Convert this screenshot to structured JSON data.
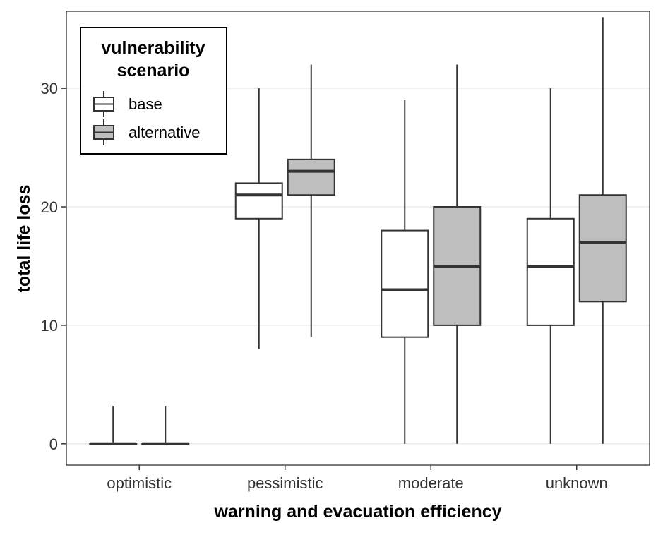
{
  "chart_data": {
    "type": "boxplot",
    "xlabel": "warning and evacuation efficiency",
    "ylabel": "total life loss",
    "ylim": [
      -1.8,
      36.5
    ],
    "yticks": [
      0,
      10,
      20,
      30
    ],
    "ytick_labels": [
      "0",
      "10",
      "20",
      "30"
    ],
    "grid": true,
    "categories": [
      "optimistic",
      "pessimistic",
      "moderate",
      "unknown"
    ],
    "legend": {
      "title_line1": "vulnerability",
      "title_line2": "scenario",
      "position": "top-left"
    },
    "series": [
      {
        "name": "base",
        "fill": "#ffffff",
        "boxes": [
          {
            "min": 0,
            "q1": 0,
            "median": 0,
            "q3": 0,
            "max": 3.2
          },
          {
            "min": 8,
            "q1": 19,
            "median": 21,
            "q3": 22,
            "max": 30
          },
          {
            "min": 0,
            "q1": 9,
            "median": 13,
            "q3": 18,
            "max": 29
          },
          {
            "min": 0,
            "q1": 10,
            "median": 15,
            "q3": 19,
            "max": 30
          }
        ]
      },
      {
        "name": "alternative",
        "fill": "#bebebe",
        "boxes": [
          {
            "min": 0,
            "q1": 0,
            "median": 0,
            "q3": 0,
            "max": 3.2
          },
          {
            "min": 9,
            "q1": 21,
            "median": 23,
            "q3": 24,
            "max": 32
          },
          {
            "min": 0,
            "q1": 10,
            "median": 15,
            "q3": 20,
            "max": 32
          },
          {
            "min": 0,
            "q1": 12,
            "median": 17,
            "q3": 21,
            "max": 36
          }
        ]
      }
    ]
  },
  "colors": {
    "grid": "#ebebeb",
    "panel_border": "#333333",
    "box_stroke": "#333333"
  }
}
